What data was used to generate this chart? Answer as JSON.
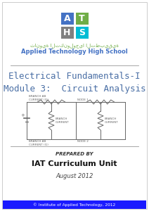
{
  "bg_color": "#ffffff",
  "border_color": "#cccccc",
  "title_line1": "Electrical Fundamentals-I",
  "title_line2": "Module 3:  Circuit Analysis",
  "title_color": "#4a6fa5",
  "prepared_by": "PREPARED BY",
  "author": "IAT Curriculum Unit",
  "date": "August 2012",
  "footer_text": "© Institute of Applied Technology, 2012",
  "footer_bg": "#1a1aff",
  "footer_text_color": "#ffffff",
  "arabic_text": "ثانوية التكنولوجيا التطبيقية",
  "english_school": "Applied Technology High School",
  "logo_A_color": "#4472c4",
  "logo_T_color": "#70ad47",
  "logo_H_color": "#808080",
  "logo_S_color": "#00bcd4",
  "separator_color": "#999999",
  "circuit_color": "#666666",
  "circuit_label_color": "#666666"
}
